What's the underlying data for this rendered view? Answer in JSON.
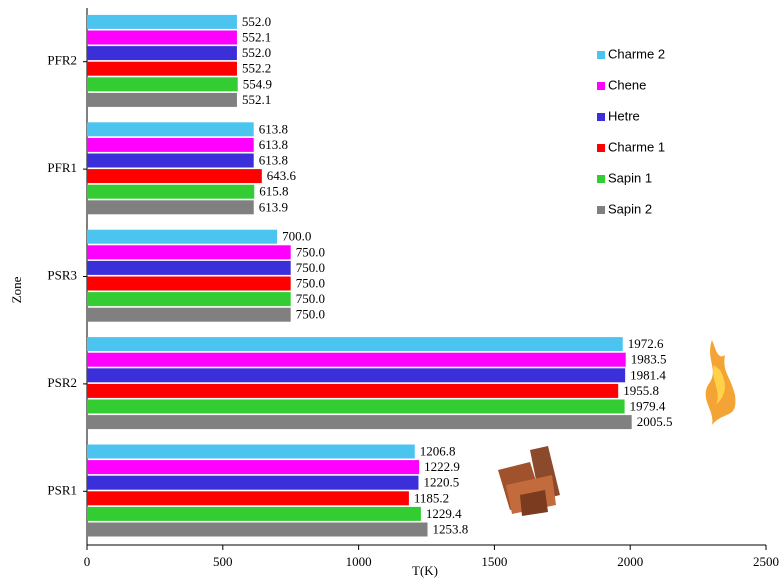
{
  "chart_data": {
    "type": "barh",
    "xlabel": "T(K)",
    "ylabel": "Zone",
    "categories": [
      "PFR2",
      "PFR1",
      "PSR3",
      "PSR2",
      "PSR1"
    ],
    "series": [
      {
        "name": "Charme 2",
        "color": "#4cc4f0",
        "values": [
          552.0,
          613.8,
          700.0,
          1972.6,
          1206.8
        ],
        "value_labels": [
          "552.0",
          "613.8",
          "700.0",
          "1972.6",
          "1206.8"
        ]
      },
      {
        "name": "Chene",
        "color": "#ff00ff",
        "values": [
          552.1,
          613.8,
          750.0,
          1983.5,
          1222.9
        ],
        "value_labels": [
          "552.1",
          "613.8",
          "750.0",
          "1983.5",
          "1222.9"
        ]
      },
      {
        "name": "Hetre",
        "color": "#3b2fd9",
        "values": [
          552.0,
          613.8,
          750.0,
          1981.4,
          1220.5
        ],
        "value_labels": [
          "552.0",
          "613.8",
          "750.0",
          "1981.4",
          "1220.5"
        ]
      },
      {
        "name": "Charme 1",
        "color": "#ff0000",
        "values": [
          552.2,
          643.6,
          750.0,
          1955.8,
          1185.2
        ],
        "value_labels": [
          "552.2",
          "643.6",
          "750.0",
          "1955.8",
          "1185.2"
        ]
      },
      {
        "name": "Sapin 1",
        "color": "#33cc33",
        "values": [
          554.9,
          615.8,
          750.0,
          1979.4,
          1229.4
        ],
        "value_labels": [
          "554.9",
          "615.8",
          "750.0",
          "1979.4",
          "1229.4"
        ]
      },
      {
        "name": "Sapin 2",
        "color": "#808080",
        "values": [
          552.1,
          613.9,
          750.0,
          2005.5,
          1253.8
        ],
        "value_labels": [
          "552.1",
          "613.9",
          "750.0",
          "2005.5",
          "1253.8"
        ]
      }
    ],
    "xlim": [
      0,
      2500
    ],
    "xticks": [
      0,
      500,
      1000,
      1500,
      2000,
      2500
    ],
    "legend": "upper right"
  }
}
